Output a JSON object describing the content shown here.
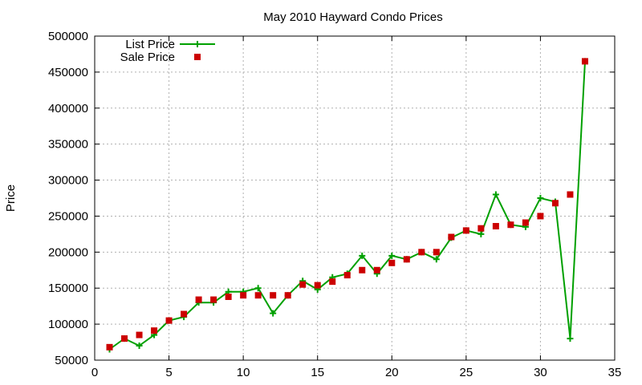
{
  "chart_data": {
    "type": "line",
    "title": "May 2010 Hayward Condo Prices",
    "xlabel": "",
    "ylabel": "Price",
    "xlim": [
      0,
      35
    ],
    "ylim": [
      50000,
      500000
    ],
    "xticks": [
      0,
      5,
      10,
      15,
      20,
      25,
      30,
      35
    ],
    "yticks": [
      50000,
      100000,
      150000,
      200000,
      250000,
      300000,
      350000,
      400000,
      450000,
      500000
    ],
    "grid": true,
    "legend_position": "top-left",
    "series": [
      {
        "name": "List Price",
        "style": "line-with-plus-markers",
        "color": "#00a000",
        "x": [
          1,
          2,
          3,
          4,
          5,
          6,
          7,
          8,
          9,
          10,
          11,
          12,
          13,
          14,
          15,
          16,
          17,
          18,
          19,
          20,
          21,
          22,
          23,
          24,
          25,
          26,
          27,
          28,
          29,
          30,
          31,
          32,
          33
        ],
        "y": [
          65000,
          80000,
          70000,
          85000,
          105000,
          110000,
          130000,
          130000,
          145000,
          145000,
          150000,
          115000,
          140000,
          160000,
          148000,
          165000,
          170000,
          195000,
          170000,
          195000,
          190000,
          200000,
          190000,
          220000,
          230000,
          225000,
          280000,
          238000,
          235000,
          275000,
          270000,
          80000,
          465000
        ]
      },
      {
        "name": "Sale Price",
        "style": "square-markers",
        "color": "#cc0000",
        "x": [
          1,
          2,
          3,
          4,
          5,
          6,
          7,
          8,
          9,
          10,
          11,
          12,
          13,
          14,
          15,
          16,
          17,
          18,
          19,
          20,
          21,
          22,
          23,
          24,
          25,
          26,
          27,
          28,
          29,
          30,
          31,
          32,
          33
        ],
        "y": [
          68000,
          80000,
          85000,
          91000,
          105000,
          114000,
          134000,
          134000,
          138000,
          140000,
          140000,
          140000,
          140000,
          155000,
          154000,
          159000,
          168000,
          175000,
          175000,
          185000,
          190000,
          200000,
          200000,
          221000,
          230000,
          233000,
          236000,
          238000,
          241000,
          250000,
          268000,
          280000,
          465000
        ]
      }
    ]
  }
}
